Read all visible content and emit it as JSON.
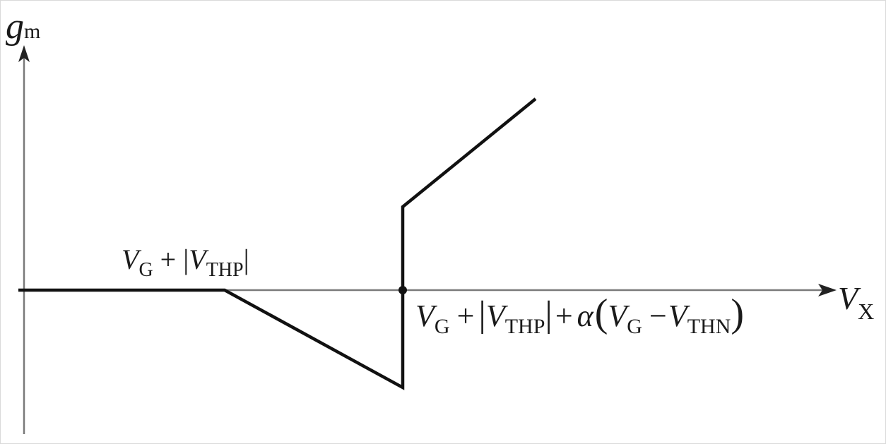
{
  "diagram": {
    "y_axis": {
      "symbol": "g",
      "subscript": "m"
    },
    "x_axis": {
      "symbol": "V",
      "subscript": "X"
    },
    "breakpoint_1": {
      "v": "V",
      "g_sub": "G",
      "plus": "+",
      "bar_open": "|",
      "v2": "V",
      "thp_sub": "THP",
      "bar_close": "|"
    },
    "breakpoint_2": {
      "v": "V",
      "g_sub": "G",
      "plus1": "+",
      "bar_open": "|",
      "v2": "V",
      "thp_sub": "THP",
      "bar_close": "|",
      "plus2": "+",
      "alpha": "α",
      "paren_open": "(",
      "v3": "V",
      "g_sub2": "G",
      "minus": "−",
      "v4": "V",
      "thn_sub": "THN",
      "paren_close": ")"
    },
    "colors": {
      "axis": "#7a7a7a",
      "curve": "#111111",
      "text": "#1a1a1a"
    }
  }
}
